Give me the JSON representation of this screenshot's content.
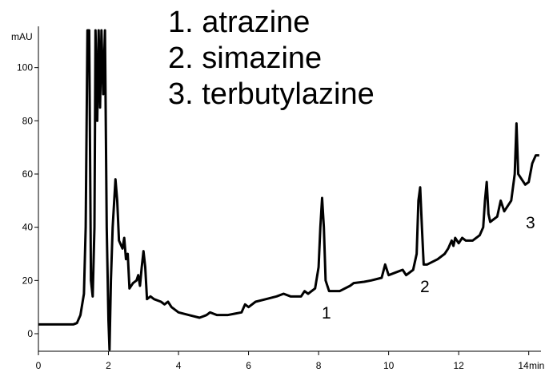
{
  "chart_data": {
    "type": "line",
    "xlabel": "min",
    "ylabel": "mAU",
    "annotations": [
      "1. atrazine",
      "2. simazine",
      "3. terbutylazine"
    ],
    "peak_labels": [
      "1",
      "2",
      "3"
    ],
    "color": "#000000",
    "xlim": [
      0,
      14.35
    ],
    "ylim": [
      -6.6,
      115.5
    ],
    "xticks": [
      0,
      2,
      4,
      6,
      8,
      10,
      12,
      14
    ],
    "yticks": [
      0,
      20,
      40,
      60,
      80,
      100
    ],
    "x": [
      0,
      1.0,
      1.1,
      1.2,
      1.3,
      1.35,
      1.4,
      1.45,
      1.5,
      1.55,
      1.6,
      1.63,
      1.68,
      1.72,
      1.76,
      1.8,
      1.85,
      1.9,
      1.95,
      2.0,
      2.03,
      2.07,
      2.12,
      2.2,
      2.25,
      2.3,
      2.4,
      2.45,
      2.5,
      2.55,
      2.6,
      2.7,
      2.8,
      2.85,
      2.9,
      2.95,
      3.0,
      3.05,
      3.1,
      3.2,
      3.3,
      3.5,
      3.6,
      3.7,
      3.8,
      4.0,
      4.3,
      4.6,
      4.8,
      4.9,
      5.0,
      5.1,
      5.4,
      5.6,
      5.8,
      5.9,
      6.0,
      6.2,
      6.5,
      6.8,
      7.0,
      7.2,
      7.5,
      7.6,
      7.7,
      7.9,
      8.0,
      8.05,
      8.1,
      8.15,
      8.2,
      8.3,
      8.6,
      8.9,
      9.0,
      9.3,
      9.5,
      9.8,
      9.9,
      10.0,
      10.2,
      10.4,
      10.5,
      10.7,
      10.8,
      10.85,
      10.9,
      10.95,
      11.0,
      11.1,
      11.4,
      11.6,
      11.7,
      11.8,
      11.85,
      11.9,
      12.0,
      12.1,
      12.2,
      12.4,
      12.6,
      12.7,
      12.75,
      12.8,
      12.85,
      12.9,
      13.1,
      13.2,
      13.3,
      13.5,
      13.6,
      13.65,
      13.7,
      13.8,
      13.9,
      14.0,
      14.1,
      14.2,
      14.3
    ],
    "values": [
      3.5,
      3.5,
      4,
      7,
      15,
      40,
      114,
      114,
      20,
      14,
      40,
      114,
      80,
      114,
      85,
      114,
      90,
      114,
      40,
      5,
      -6,
      20,
      40,
      58,
      50,
      35,
      32,
      36,
      28,
      30,
      17,
      19,
      20,
      22,
      18,
      25,
      31,
      25,
      13,
      14,
      13,
      12,
      11,
      12,
      10,
      8,
      7,
      6,
      7,
      8,
      7.5,
      7,
      7,
      7.5,
      8,
      11,
      10,
      12,
      13,
      14,
      15,
      14,
      14,
      16,
      15,
      17,
      25,
      40,
      51,
      40,
      20,
      16,
      16,
      18,
      19,
      19.5,
      20,
      21,
      26,
      22,
      23,
      24,
      22,
      24,
      30,
      50,
      55,
      40,
      26,
      26,
      28,
      30,
      32,
      35,
      33,
      36,
      34,
      36,
      35,
      35,
      37,
      40,
      50,
      57,
      45,
      42,
      44,
      50,
      46,
      50,
      60,
      79,
      60,
      58,
      56,
      57,
      64,
      67,
      67
    ]
  }
}
